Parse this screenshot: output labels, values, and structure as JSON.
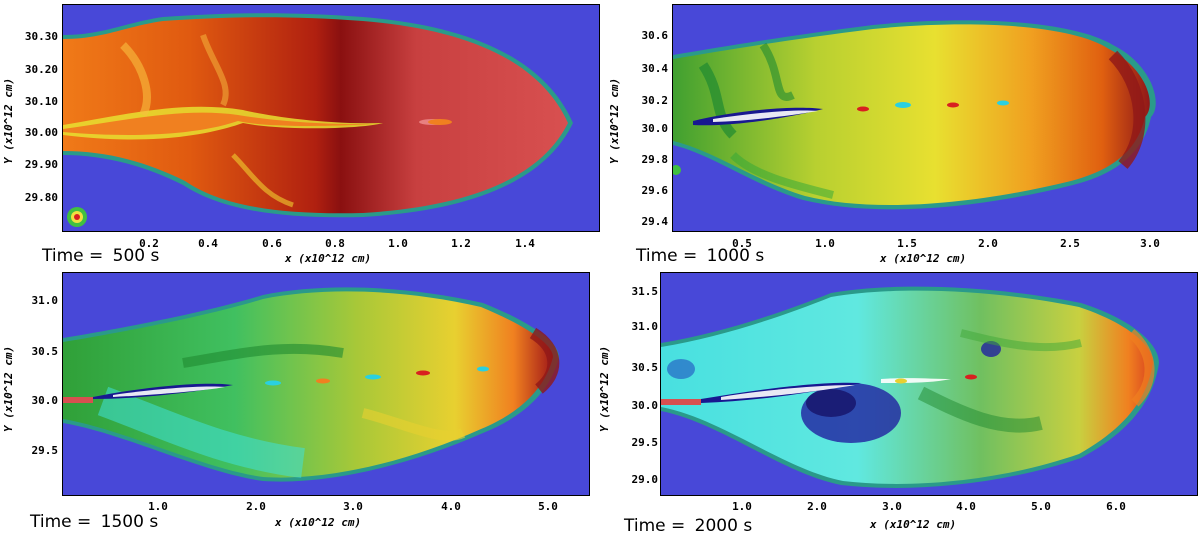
{
  "panels": [
    {
      "time_label": "Time =",
      "time_value": "500 s",
      "xlabel": "x (x10^12 cm)",
      "ylabel": "Y (x10^12 cm)",
      "xticks": [
        "0.2",
        "0.4",
        "0.6",
        "0.8",
        "1.0",
        "1.2",
        "1.4"
      ],
      "yticks": [
        "30.30",
        "30.20",
        "30.10",
        "30.00",
        "29.90",
        "29.80"
      ]
    },
    {
      "time_label": "Time =",
      "time_value": "1000 s",
      "xlabel": "x (x10^12 cm)",
      "ylabel": "Y (x10^12 cm)",
      "xticks": [
        "0.5",
        "1.0",
        "1.5",
        "2.0",
        "2.5",
        "3.0"
      ],
      "yticks": [
        "30.6",
        "30.4",
        "30.2",
        "30.0",
        "29.8",
        "29.6",
        "29.4"
      ]
    },
    {
      "time_label": "Time =",
      "time_value": "1500 s",
      "xlabel": "x (x10^12 cm)",
      "ylabel": "Y (x10^12 cm)",
      "xticks": [
        "1.0",
        "2.0",
        "3.0",
        "4.0",
        "5.0"
      ],
      "yticks": [
        "31.0",
        "30.5",
        "30.0",
        "29.5"
      ]
    },
    {
      "time_label": "Time =",
      "time_value": "2000 s",
      "xlabel": "x (x10^12 cm)",
      "ylabel": "Y (x10^12 cm)",
      "xticks": [
        "1.0",
        "2.0",
        "3.0",
        "4.0",
        "5.0",
        "6.0"
      ],
      "yticks": [
        "31.5",
        "31.0",
        "30.5",
        "30.0",
        "29.5",
        "29.0"
      ]
    }
  ],
  "colors": {
    "background_blue": "#4848d8",
    "hot_red": "#d85050",
    "dark_red": "#8a1010",
    "orange": "#f08020",
    "yellow": "#e8e030",
    "green": "#40a030",
    "cyan": "#40e0d8",
    "deep_blue": "#181890"
  }
}
